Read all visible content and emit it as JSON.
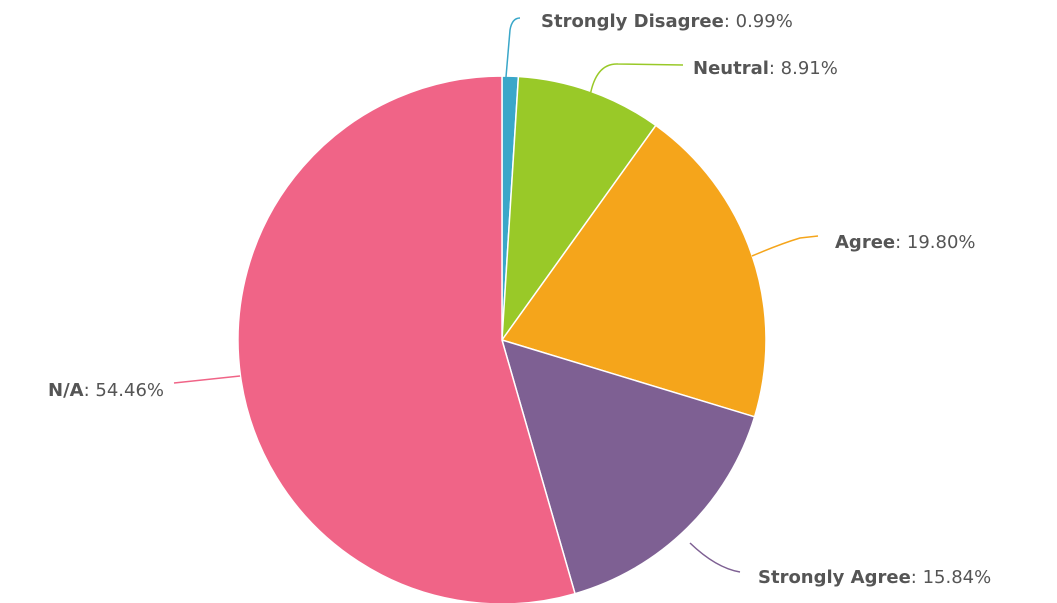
{
  "chart_data": {
    "type": "pie",
    "title": "",
    "slices": [
      {
        "name": "Strongly Disagree",
        "value": 0.99,
        "display": "0.99%",
        "color": "#3aa7c9"
      },
      {
        "name": "Neutral",
        "value": 8.91,
        "display": "8.91%",
        "color": "#99c928"
      },
      {
        "name": "Agree",
        "value": 19.8,
        "display": "19.80%",
        "color": "#f5a51b"
      },
      {
        "name": "Strongly Agree",
        "value": 15.84,
        "display": "15.84%",
        "color": "#7e6093"
      },
      {
        "name": "N/A",
        "value": 54.46,
        "display": "54.46%",
        "color": "#f06487"
      }
    ],
    "label_separator": ": ",
    "label_color": "#555555",
    "slice_border_color": "#ffffff"
  }
}
